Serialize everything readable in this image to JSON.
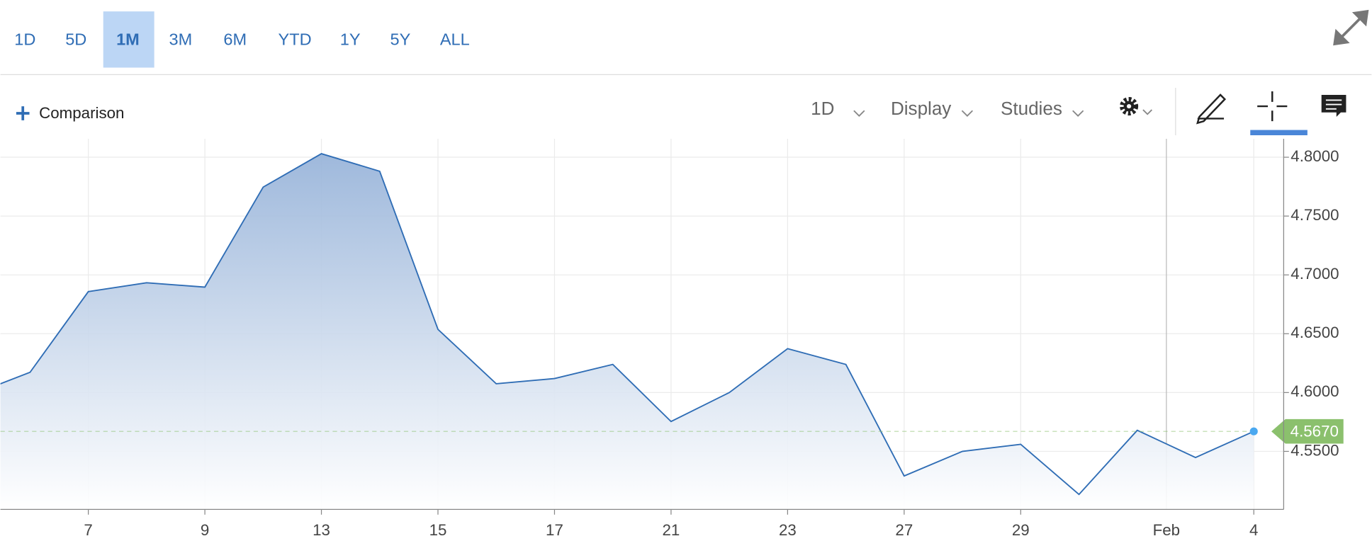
{
  "toolbar": {
    "ranges": [
      "1D",
      "5D",
      "1M",
      "3M",
      "6M",
      "YTD",
      "1Y",
      "5Y",
      "ALL"
    ],
    "selected_range": 2,
    "comparison": "Comparison",
    "menus": [
      "1D",
      "Display",
      "Studies"
    ]
  },
  "chart_data": {
    "type": "area",
    "categories": [
      null,
      null,
      "7",
      null,
      "9",
      null,
      "13",
      null,
      "15",
      null,
      "17",
      null,
      "21",
      null,
      "23",
      null,
      "27",
      null,
      "29",
      null,
      null,
      null,
      "4"
    ],
    "values": [
      4.598,
      4.6172,
      4.6858,
      4.6933,
      4.6896,
      4.7746,
      4.803,
      4.7881,
      4.6537,
      4.6075,
      4.6119,
      4.6239,
      4.5754,
      4.6,
      4.6373,
      4.6239,
      4.5291,
      4.55,
      4.556,
      4.5134,
      4.5679,
      4.5448,
      4.567
    ],
    "last_value_label": "4.5670",
    "month_break": {
      "label": "Feb",
      "between": [
        20,
        21
      ]
    },
    "color": "#2f6db5",
    "last_color": "#8bc06d",
    "ylim": [
      4.5007,
      4.8157
    ],
    "yticks": [
      {
        "value": 4.55,
        "label": "4.5500"
      },
      {
        "value": 4.6,
        "label": "4.6000"
      },
      {
        "value": 4.65,
        "label": "4.6500"
      },
      {
        "value": 4.7,
        "label": "4.7000"
      },
      {
        "value": 4.75,
        "label": "4.7500"
      },
      {
        "value": 4.8,
        "label": "4.8000"
      }
    ],
    "grid": true
  }
}
